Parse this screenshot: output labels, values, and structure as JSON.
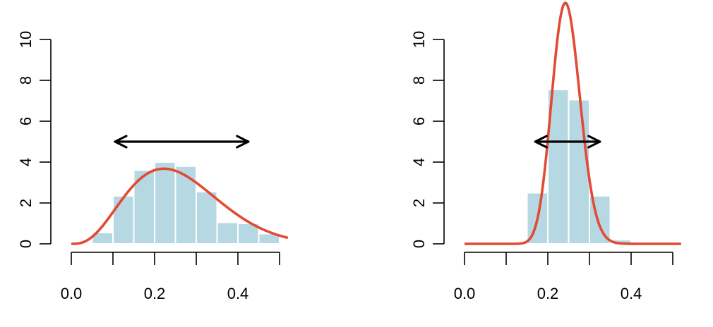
{
  "chart_data": [
    {
      "type": "bar",
      "title": "",
      "xlabel": "",
      "ylabel": "",
      "xlim": [
        0,
        0.5
      ],
      "ylim": [
        0,
        10
      ],
      "x_ticks": [
        0.0,
        0.1,
        0.2,
        0.3,
        0.4,
        0.5
      ],
      "x_tick_labels": [
        "0.0",
        "0.2",
        "0.4"
      ],
      "x_tick_label_values": [
        0.0,
        0.2,
        0.4
      ],
      "y_ticks": [
        0,
        2,
        4,
        6,
        8,
        10
      ],
      "y_tick_labels": [
        "0",
        "2",
        "4",
        "6",
        "8",
        "10"
      ],
      "bins": [
        {
          "x0": 0.05,
          "x1": 0.1,
          "value": 0.55
        },
        {
          "x0": 0.1,
          "x1": 0.15,
          "value": 2.35
        },
        {
          "x0": 0.15,
          "x1": 0.2,
          "value": 3.6
        },
        {
          "x0": 0.2,
          "x1": 0.25,
          "value": 4.0
        },
        {
          "x0": 0.25,
          "x1": 0.3,
          "value": 3.8
        },
        {
          "x0": 0.3,
          "x1": 0.35,
          "value": 2.55
        },
        {
          "x0": 0.35,
          "x1": 0.4,
          "value": 1.05
        },
        {
          "x0": 0.4,
          "x1": 0.45,
          "value": 1.0
        },
        {
          "x0": 0.45,
          "x1": 0.5,
          "value": 0.5
        }
      ],
      "density_curve": {
        "distribution": "beta",
        "alpha": 4,
        "beta": 11.5,
        "x_range": [
          0,
          0.52
        ]
      },
      "interval_arrow": {
        "from": 0.105,
        "to": 0.425,
        "y": 5
      },
      "colors": {
        "bars": "#b6d8e3",
        "bar_edge": "#ffffff",
        "curve": "#e24a33",
        "arrow": "#000000"
      }
    },
    {
      "type": "bar",
      "title": "",
      "xlabel": "",
      "ylabel": "",
      "xlim": [
        0,
        0.5
      ],
      "ylim": [
        0,
        10
      ],
      "x_ticks": [
        0.0,
        0.1,
        0.2,
        0.3,
        0.4,
        0.5
      ],
      "x_tick_labels": [
        "0.0",
        "0.2",
        "0.4"
      ],
      "x_tick_label_values": [
        0.0,
        0.2,
        0.4
      ],
      "y_ticks": [
        0,
        2,
        4,
        6,
        8,
        10
      ],
      "y_tick_labels": [
        "0",
        "2",
        "4",
        "6",
        "8",
        "10"
      ],
      "bins": [
        {
          "x0": 0.15,
          "x1": 0.2,
          "value": 2.5
        },
        {
          "x0": 0.2,
          "x1": 0.25,
          "value": 7.55
        },
        {
          "x0": 0.25,
          "x1": 0.3,
          "value": 7.05
        },
        {
          "x0": 0.3,
          "x1": 0.35,
          "value": 2.35
        },
        {
          "x0": 0.35,
          "x1": 0.4,
          "value": 0.2
        }
      ],
      "density_curve": {
        "distribution": "beta",
        "alpha": 39.5,
        "beta": 121.5,
        "x_range": [
          0,
          0.52
        ]
      },
      "interval_arrow": {
        "from": 0.17,
        "to": 0.325,
        "y": 5
      },
      "colors": {
        "bars": "#b6d8e3",
        "bar_edge": "#ffffff",
        "curve": "#e24a33",
        "arrow": "#000000"
      }
    }
  ]
}
